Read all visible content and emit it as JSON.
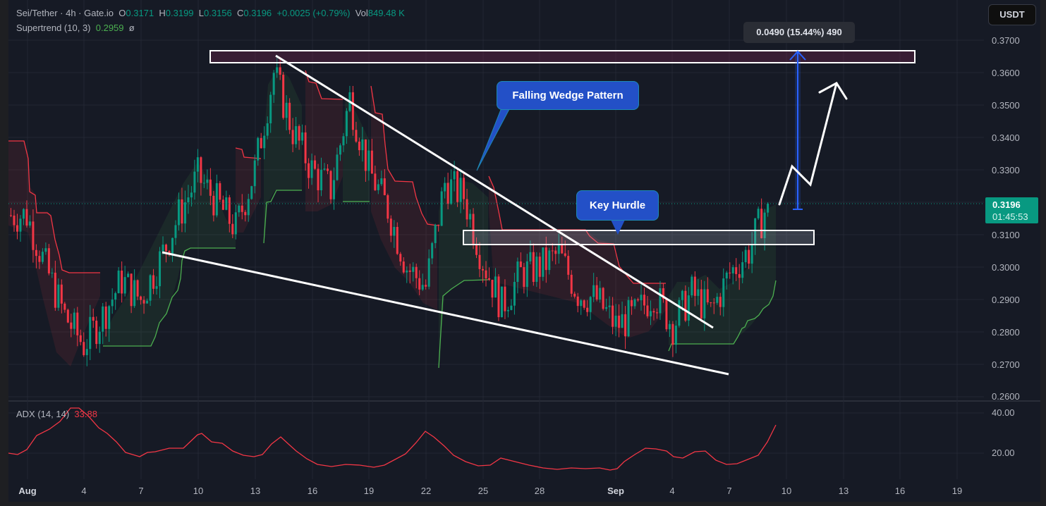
{
  "header": {
    "symbol": "Sei/Tether · 4h · Gate.io",
    "open_label": "O",
    "open": "0.3171",
    "high_label": "H",
    "high": "0.3199",
    "low_label": "L",
    "low": "0.3156",
    "close_label": "C",
    "close": "0.3196",
    "change": "+0.0025 (+0.79%)",
    "vol_label": "Vol",
    "vol": "849.48 K"
  },
  "supertrend": {
    "label": "Supertrend (10, 3)",
    "value": "0.2959",
    "extra": "ø"
  },
  "currency_button": "USDT",
  "last_price": {
    "price": "0.3196",
    "countdown": "01:45:53"
  },
  "annotations": {
    "falling_wedge": "Falling Wedge Pattern",
    "key_hurdle": "Key Hurdle",
    "measure": "0.0490 (15.44%) 490"
  },
  "adx": {
    "label": "ADX (14, 14)",
    "value": "33.88",
    "axis": [
      "40.00",
      "20.00"
    ]
  },
  "colors": {
    "up": "#089981",
    "down": "#f23645",
    "supertrend_up": "#4caf50",
    "supertrend_down": "#f23645",
    "callout": "#2350c7",
    "measure": "#2962ff"
  },
  "chart_data": {
    "type": "candlestick",
    "title": "Sei/Tether · 4h · Gate.io",
    "xlabel": "",
    "ylabel": "USDT",
    "ylim": [
      0.26,
      0.37
    ],
    "y_ticks": [
      "0.3700",
      "0.3600",
      "0.3500",
      "0.3400",
      "0.3300",
      "0.3200",
      "0.3100",
      "0.3000",
      "0.2900",
      "0.2800",
      "0.2700",
      "0.2600"
    ],
    "x_ticks": [
      "Aug",
      "4",
      "7",
      "10",
      "13",
      "16",
      "19",
      "22",
      "25",
      "28",
      "Sep",
      "4",
      "7",
      "10",
      "13",
      "16",
      "19"
    ],
    "close_path_approx": {
      "x": [
        "Aug 1",
        "Aug 2",
        "Aug 3",
        "Aug 4",
        "Aug 5",
        "Aug 6",
        "Aug 7",
        "Aug 8",
        "Aug 9",
        "Aug 10",
        "Aug 11",
        "Aug 12",
        "Aug 13",
        "Aug 14",
        "Aug 15",
        "Aug 16",
        "Aug 17",
        "Aug 18",
        "Aug 19",
        "Aug 20",
        "Aug 21",
        "Aug 22",
        "Aug 23",
        "Aug 24",
        "Aug 25",
        "Aug 26",
        "Aug 27",
        "Aug 28",
        "Aug 29",
        "Aug 30",
        "Aug 31",
        "Sep 1",
        "Sep 2",
        "Sep 3",
        "Sep 4",
        "Sep 5",
        "Sep 6",
        "Sep 7",
        "Sep 8",
        "Sep 9"
      ],
      "values": [
        0.316,
        0.3,
        0.285,
        0.276,
        0.285,
        0.296,
        0.29,
        0.302,
        0.316,
        0.328,
        0.32,
        0.312,
        0.33,
        0.36,
        0.342,
        0.33,
        0.324,
        0.352,
        0.33,
        0.318,
        0.3,
        0.294,
        0.326,
        0.322,
        0.302,
        0.288,
        0.298,
        0.3,
        0.304,
        0.292,
        0.29,
        0.282,
        0.285,
        0.292,
        0.282,
        0.292,
        0.286,
        0.298,
        0.305,
        0.3196
      ]
    },
    "supertrend_current": 0.2959,
    "resistance_zone": [
      0.3645,
      0.3665
    ],
    "key_hurdle_zone": [
      0.307,
      0.3115
    ],
    "wedge_upper_line": [
      [
        "Aug 14",
        0.3655
      ],
      [
        "Sep 6",
        0.2815
      ]
    ],
    "wedge_lower_line": [
      [
        "Aug 8",
        0.3045
      ],
      [
        "Sep 8",
        0.2665
      ]
    ],
    "measure": {
      "from": 0.318,
      "to": 0.367,
      "change": 0.049,
      "pct": 15.44
    },
    "adx_series": {
      "label": "ADX (14, 14)",
      "ylim": [
        10,
        45
      ],
      "last": 33.88
    }
  }
}
